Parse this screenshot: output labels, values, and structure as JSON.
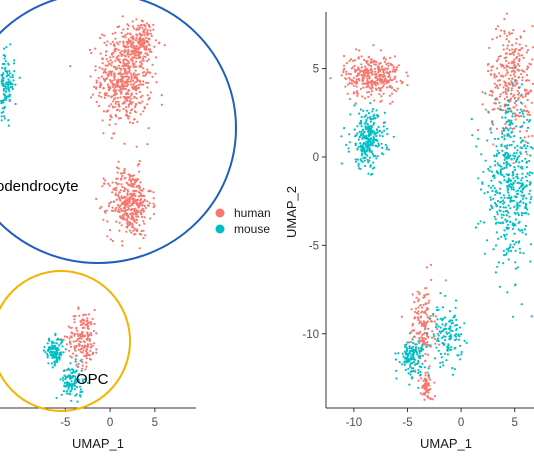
{
  "chart_data": [
    {
      "type": "scatter",
      "panel": "left",
      "xlabel": "UMAP_1",
      "ylabel": "",
      "x_ticks": [
        -5,
        0,
        5
      ],
      "xlim": [
        -12.3,
        9.6
      ],
      "ylim": [
        -14.5,
        8.5
      ],
      "grid": false,
      "colors": {
        "human": "#F8766D",
        "mouse": "#00BFC4"
      },
      "annotations": [
        {
          "text": "odendrocyte",
          "shape": "circle",
          "color": "#1f5fbf"
        },
        {
          "text": "OPC",
          "shape": "circle",
          "color": "#f4b400"
        }
      ],
      "clusters": [
        {
          "group": "mouse",
          "label": "oligodendrocyte (mouse)",
          "cx": -11.7,
          "cy": 4.3,
          "sx": 0.5,
          "sy": 0.9,
          "n": 140
        },
        {
          "group": "human",
          "label": "oligodendrocyte (human)",
          "cx": 1.6,
          "cy": 4.7,
          "sx": 1.5,
          "sy": 1.4,
          "n": 560
        },
        {
          "group": "human",
          "label": "oligodendrocyte (human, tip)",
          "cx": 3.4,
          "cy": 6.8,
          "sx": 0.7,
          "sy": 0.6,
          "n": 130
        },
        {
          "group": "human",
          "label": "oligodendrocyte (human, lower)",
          "cx": 2.2,
          "cy": -2.6,
          "sx": 1.2,
          "sy": 1.0,
          "n": 360
        },
        {
          "group": "human",
          "label": "OPC (human)",
          "cx": -3.0,
          "cy": -10.4,
          "sx": 0.9,
          "sy": 0.8,
          "n": 170
        },
        {
          "group": "mouse",
          "label": "OPC (mouse, left)",
          "cx": -6.2,
          "cy": -11.2,
          "sx": 0.5,
          "sy": 0.4,
          "n": 120
        },
        {
          "group": "mouse",
          "label": "OPC (mouse, bottom)",
          "cx": -4.2,
          "cy": -13.0,
          "sx": 0.6,
          "sy": 0.5,
          "n": 110
        }
      ]
    },
    {
      "type": "scatter",
      "panel": "right",
      "xlabel": "UMAP_1",
      "ylabel": "UMAP_2",
      "x_ticks": [
        -10,
        -5,
        0,
        5
      ],
      "y_ticks": [
        5,
        0,
        -5,
        -10
      ],
      "xlim": [
        -12.6,
        6.8
      ],
      "ylim": [
        -14.2,
        8.2
      ],
      "grid": false,
      "colors": {
        "human": "#F8766D",
        "mouse": "#00BFC4"
      },
      "clusters": [
        {
          "group": "human",
          "label": "top-left (human)",
          "cx": -8.3,
          "cy": 4.6,
          "sx": 1.3,
          "sy": 0.6,
          "n": 320
        },
        {
          "group": "mouse",
          "label": "top-left (mouse)",
          "cx": -8.7,
          "cy": 1.0,
          "sx": 0.8,
          "sy": 0.8,
          "n": 260
        },
        {
          "group": "human",
          "label": "right (human)",
          "cx": 4.8,
          "cy": 4.3,
          "sx": 1.2,
          "sy": 1.6,
          "n": 320
        },
        {
          "group": "mouse",
          "label": "right (mouse)",
          "cx": 4.6,
          "cy": -1.5,
          "sx": 1.2,
          "sy": 2.2,
          "n": 480
        },
        {
          "group": "human",
          "label": "bottom (human)",
          "cx": -3.6,
          "cy": -9.6,
          "sx": 0.6,
          "sy": 1.2,
          "n": 150
        },
        {
          "group": "mouse",
          "label": "bottom (mouse, right)",
          "cx": -1.3,
          "cy": -10.1,
          "sx": 0.7,
          "sy": 0.8,
          "n": 130
        },
        {
          "group": "mouse",
          "label": "bottom (mouse, left)",
          "cx": -4.6,
          "cy": -11.3,
          "sx": 0.6,
          "sy": 0.5,
          "n": 130
        },
        {
          "group": "human",
          "label": "bottom (human, tail)",
          "cx": -3.2,
          "cy": -13.0,
          "sx": 0.3,
          "sy": 0.4,
          "n": 60
        }
      ]
    }
  ],
  "annotations": {
    "oligodendrocyte_label": "odendrocyte",
    "opc_label": "OPC"
  },
  "legend": {
    "items": [
      {
        "label": "human",
        "color": "#F8766D"
      },
      {
        "label": "mouse",
        "color": "#00BFC4"
      }
    ]
  }
}
